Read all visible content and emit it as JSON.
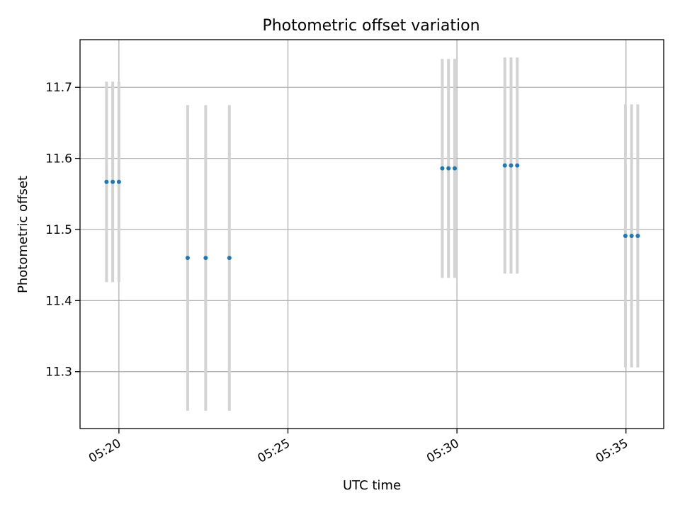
{
  "chart_data": {
    "type": "scatter",
    "title": "Photometric offset variation",
    "xlabel": "UTC time",
    "ylabel": "Photometric offset",
    "x_ticks": [
      "05:20",
      "05:25",
      "05:30",
      "05:35"
    ],
    "y_ticks": [
      "11.3",
      "11.4",
      "11.5",
      "11.6",
      "11.7"
    ],
    "xlim": [
      "05:18:51",
      "05:36:07"
    ],
    "ylim": [
      11.22,
      11.767
    ],
    "grid": true,
    "point_color": "#1f77b4",
    "errorbar_color": "#d3d3d3",
    "series": [
      {
        "points": [
          {
            "x": "05:19:38",
            "y": 11.567,
            "err": 0.141
          },
          {
            "x": "05:19:49",
            "y": 11.567,
            "err": 0.141
          },
          {
            "x": "05:20:00",
            "y": 11.567,
            "err": 0.141
          },
          {
            "x": "05:22:02",
            "y": 11.46,
            "err": 0.215
          },
          {
            "x": "05:22:34",
            "y": 11.46,
            "err": 0.215
          },
          {
            "x": "05:23:16",
            "y": 11.46,
            "err": 0.215
          },
          {
            "x": "05:29:34",
            "y": 11.586,
            "err": 0.154
          },
          {
            "x": "05:29:45",
            "y": 11.586,
            "err": 0.154
          },
          {
            "x": "05:29:56",
            "y": 11.586,
            "err": 0.154
          },
          {
            "x": "05:31:25",
            "y": 11.59,
            "err": 0.152
          },
          {
            "x": "05:31:36",
            "y": 11.59,
            "err": 0.152
          },
          {
            "x": "05:31:47",
            "y": 11.59,
            "err": 0.152
          },
          {
            "x": "05:34:59",
            "y": 11.491,
            "err": 0.185
          },
          {
            "x": "05:35:10",
            "y": 11.491,
            "err": 0.185
          },
          {
            "x": "05:35:21",
            "y": 11.491,
            "err": 0.185
          }
        ]
      }
    ]
  }
}
